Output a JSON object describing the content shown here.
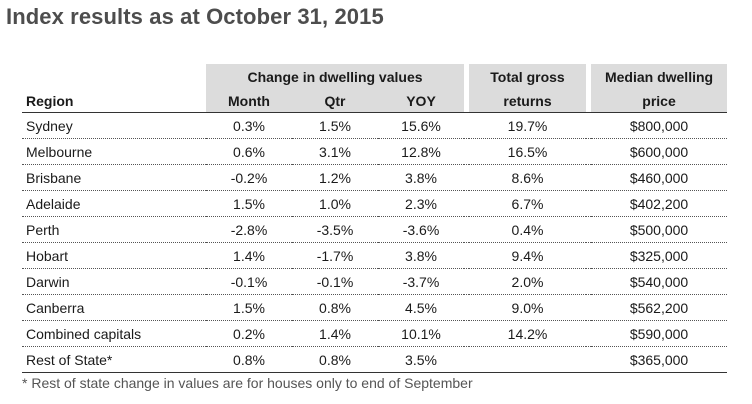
{
  "title": "Index results as at October 31, 2015",
  "headers": {
    "group": "Change in dwelling values",
    "region": "Region",
    "month": "Month",
    "qtr": "Qtr",
    "yoy": "YOY",
    "total_line1": "Total gross",
    "total_line2": "returns",
    "median_line1": "Median dwelling",
    "median_line2": "price"
  },
  "rows": [
    {
      "region": "Sydney",
      "month": "0.3%",
      "qtr": "1.5%",
      "yoy": "15.6%",
      "total": "19.7%",
      "median": "$800,000"
    },
    {
      "region": "Melbourne",
      "month": "0.6%",
      "qtr": "3.1%",
      "yoy": "12.8%",
      "total": "16.5%",
      "median": "$600,000"
    },
    {
      "region": "Brisbane",
      "month": "-0.2%",
      "qtr": "1.2%",
      "yoy": "3.8%",
      "total": "8.6%",
      "median": "$460,000"
    },
    {
      "region": "Adelaide",
      "month": "1.5%",
      "qtr": "1.0%",
      "yoy": "2.3%",
      "total": "6.7%",
      "median": "$402,200"
    },
    {
      "region": "Perth",
      "month": "-2.8%",
      "qtr": "-3.5%",
      "yoy": "-3.6%",
      "total": "0.4%",
      "median": "$500,000"
    },
    {
      "region": "Hobart",
      "month": "1.4%",
      "qtr": "-1.7%",
      "yoy": "3.8%",
      "total": "9.4%",
      "median": "$325,000"
    },
    {
      "region": "Darwin",
      "month": "-0.1%",
      "qtr": "-0.1%",
      "yoy": "-3.7%",
      "total": "2.0%",
      "median": "$540,000"
    },
    {
      "region": "Canberra",
      "month": "1.5%",
      "qtr": "0.8%",
      "yoy": "4.5%",
      "total": "9.0%",
      "median": "$562,200"
    },
    {
      "region": "Combined capitals",
      "month": "0.2%",
      "qtr": "1.4%",
      "yoy": "10.1%",
      "total": "14.2%",
      "median": "$590,000"
    },
    {
      "region": "Rest of State*",
      "month": "0.8%",
      "qtr": "0.8%",
      "yoy": "3.5%",
      "total": "",
      "median": "$365,000"
    }
  ],
  "footnote": "* Rest of state change in values are for houses only to end of September",
  "colors": {
    "header_shade": "#dcdcdc",
    "title_text": "#4d4d4d"
  }
}
